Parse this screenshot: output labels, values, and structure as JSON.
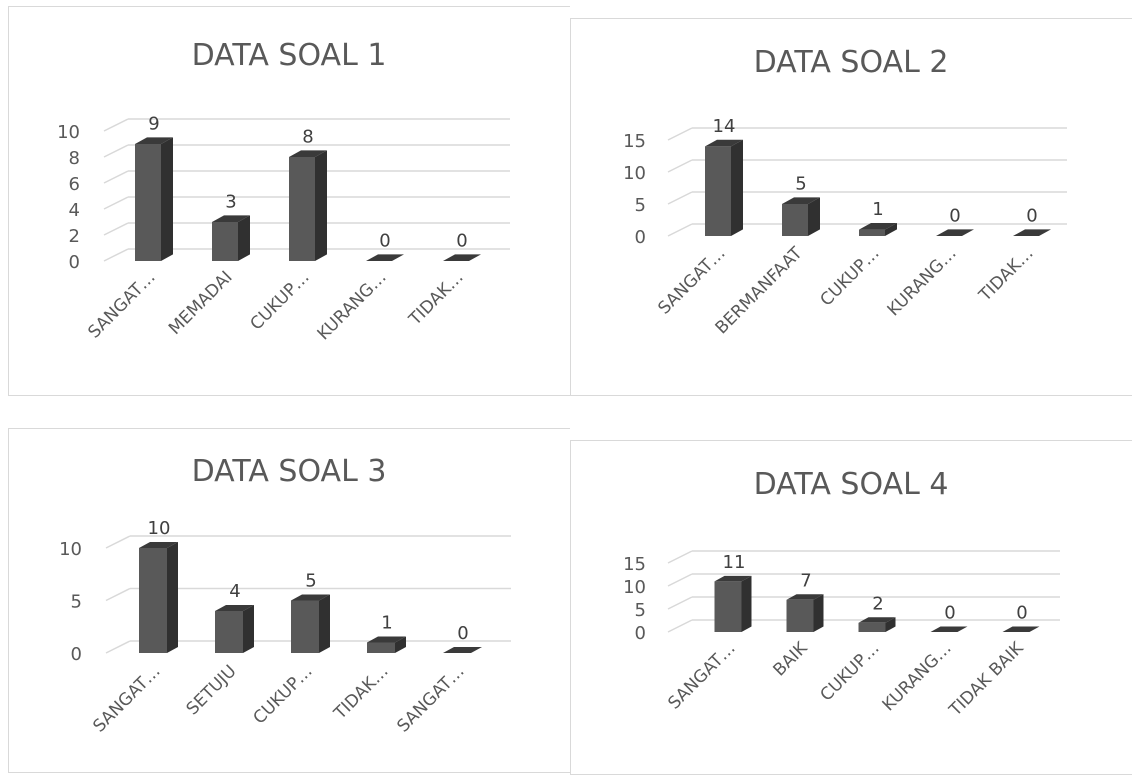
{
  "chart_data": [
    {
      "type": "bar",
      "title": "DATA SOAL 1",
      "categories": [
        "SANGAT…",
        "MEMADAI",
        "CUKUP…",
        "KURANG…",
        "TIDAK…"
      ],
      "values": [
        9,
        3,
        8,
        0,
        0
      ],
      "yticks": [
        "0",
        "2",
        "4",
        "6",
        "8",
        "10"
      ],
      "ylim": [
        0,
        10
      ],
      "grid": true,
      "legend": "none",
      "bar_color": "#595959"
    },
    {
      "type": "bar",
      "title": "DATA SOAL 2",
      "categories": [
        "SANGAT…",
        "BERMANFAAT",
        "CUKUP…",
        "KURANG…",
        "TIDAK…"
      ],
      "values": [
        14,
        5,
        1,
        0,
        0
      ],
      "yticks": [
        "0",
        "5",
        "10",
        "15"
      ],
      "ylim": [
        0,
        15
      ],
      "grid": true,
      "legend": "none",
      "bar_color": "#595959"
    },
    {
      "type": "bar",
      "title": "DATA SOAL 3",
      "categories": [
        "SANGAT…",
        "SETUJU",
        "CUKUP…",
        "TIDAK…",
        "SANGAT…"
      ],
      "values": [
        10,
        4,
        5,
        1,
        0
      ],
      "yticks": [
        "0",
        "5",
        "10"
      ],
      "ylim": [
        0,
        10
      ],
      "grid": true,
      "legend": "none",
      "bar_color": "#595959"
    },
    {
      "type": "bar",
      "title": "DATA SOAL 4",
      "categories": [
        "SANGAT…",
        "BAIK",
        "CUKUP…",
        "KURANG…",
        "TIDAK BAIK"
      ],
      "values": [
        11,
        7,
        2,
        0,
        0
      ],
      "yticks": [
        "0",
        "5",
        "10",
        "15"
      ],
      "ylim": [
        0,
        15
      ],
      "grid": true,
      "legend": "none",
      "bar_color": "#595959"
    }
  ]
}
